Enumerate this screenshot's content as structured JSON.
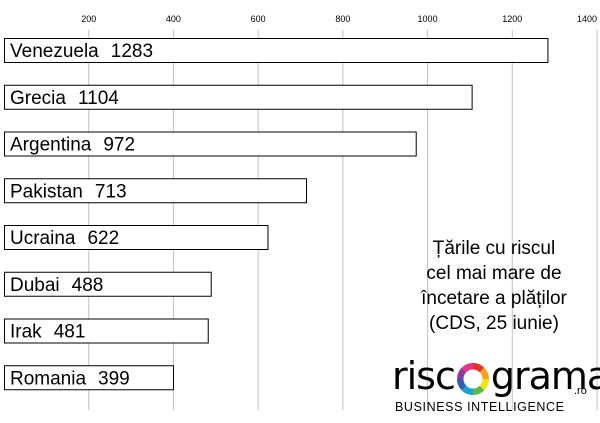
{
  "chart_data": {
    "type": "bar",
    "orientation": "horizontal",
    "categories": [
      "Venezuela",
      "Grecia",
      "Argentina",
      "Pakistan",
      "Ucraina",
      "Dubai",
      "Irak",
      "Romania"
    ],
    "values": [
      1283,
      1104,
      972,
      713,
      622,
      488,
      481,
      399
    ],
    "data_labels": [
      "1283",
      "1104",
      "972",
      "713",
      "622",
      "488",
      "481",
      "399"
    ],
    "xlim": [
      0,
      1400
    ],
    "x_ticks": [
      200,
      400,
      600,
      800,
      1000,
      1200,
      1400
    ],
    "x_tick_labels": [
      "200",
      "400",
      "600",
      "800",
      "1000",
      "1200",
      "1400"
    ],
    "x_axis_position": "top",
    "grid": "vertical",
    "bar_fill": "#ffffff",
    "bar_stroke": "#000000",
    "grid_color": "#c0c0c0"
  },
  "caption": {
    "lines": [
      "Țările cu riscul",
      "cel mai mare de",
      "încetare a plăților",
      "(CDS, 25 iunie)"
    ]
  },
  "logo": {
    "word_left": "risc",
    "word_right": "grama",
    "suffix": ".ro",
    "tagline": "BUSINESS INTELLIGENCE",
    "ring_colors": [
      "#e63329",
      "#f7a41c",
      "#f6e21b",
      "#5cb947",
      "#1aa1dc",
      "#2e5fac",
      "#8e3d97",
      "#e6338b"
    ]
  }
}
